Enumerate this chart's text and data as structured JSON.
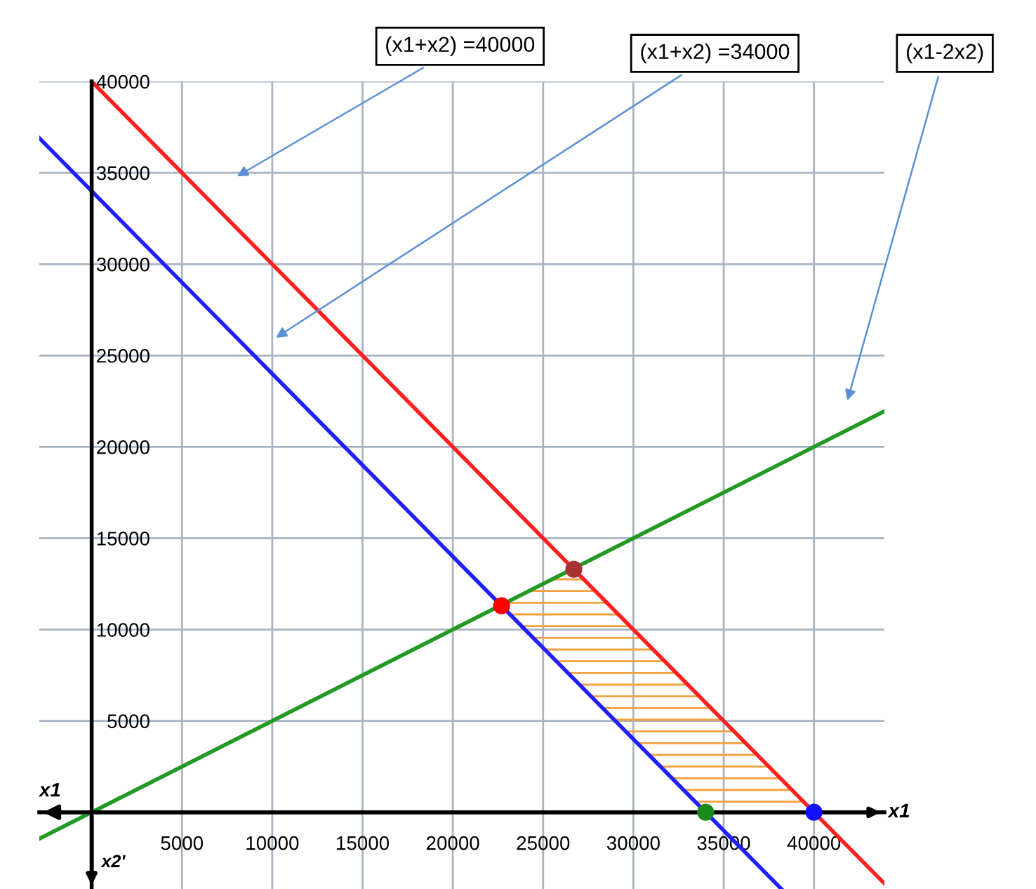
{
  "chart_data": {
    "type": "line",
    "xlabel": "x1",
    "ylabel": "x2'",
    "xlim": [
      -2900,
      43900
    ],
    "ylim": [
      -4200,
      40000
    ],
    "xticks": [
      5000,
      10000,
      15000,
      20000,
      25000,
      30000,
      35000,
      40000
    ],
    "yticks": [
      5000,
      10000,
      15000,
      20000,
      25000,
      30000,
      35000,
      40000
    ],
    "grid": true,
    "legend": false,
    "marker": "none",
    "line_style": "solid",
    "series": [
      {
        "color": "#ff2020",
        "x": [
          0,
          43900
        ],
        "values": [
          40000,
          -3900
        ]
      },
      {
        "color": "#2020ff",
        "x": [
          -2900,
          38200
        ],
        "values": [
          36900,
          -4200
        ]
      },
      {
        "color": "#229922",
        "x": [
          -2900,
          43900
        ],
        "values": [
          -1450,
          21950
        ]
      },
      {
        "type": "area",
        "color": "#f5a040",
        "x": [
          22700,
          26700,
          40000,
          34000
        ],
        "values": [
          11300,
          13300,
          0,
          0
        ]
      },
      {
        "type": "scatter",
        "marker": "circle",
        "colors": [
          "#ff0000",
          "#a83232",
          "#1a8a1a",
          "#1010ff"
        ],
        "x": [
          22700,
          26700,
          34000,
          40000
        ],
        "values": [
          11300,
          13300,
          0,
          0
        ]
      }
    ],
    "annotations": [
      "(x1+x2) =40000",
      "(x1+x2) =34000",
      "(x1-2x2)",
      "x1"
    ]
  }
}
